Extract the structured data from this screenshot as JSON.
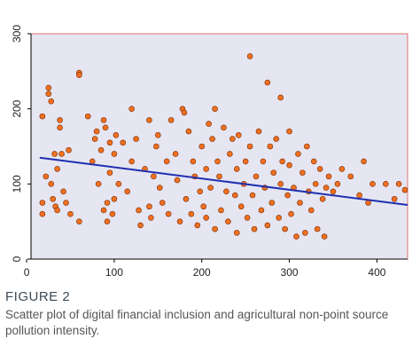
{
  "chart_data": {
    "type": "scatter",
    "caption": {
      "label": "FIGURE 2",
      "text": "Scatter plot of digital financial inclusion and agricultural non-point source pollution intensity."
    },
    "xlim": [
      5,
      435
    ],
    "ylim": [
      0,
      300
    ],
    "xticks": [
      0,
      100,
      200,
      300,
      400
    ],
    "yticks": [
      0,
      100,
      200,
      300
    ],
    "point_color": "#f07020",
    "background": "#e6e6f2",
    "trend_line": {
      "x": [
        15,
        435
      ],
      "y": [
        135,
        72
      ],
      "color": "#1f2fb0"
    },
    "x": [
      18,
      18,
      18,
      22,
      25,
      25,
      28,
      28,
      30,
      32,
      33,
      35,
      35,
      38,
      38,
      40,
      42,
      45,
      48,
      50,
      60,
      60,
      60,
      70,
      75,
      78,
      80,
      82,
      85,
      88,
      88,
      90,
      92,
      92,
      95,
      95,
      98,
      100,
      100,
      102,
      105,
      110,
      115,
      120,
      120,
      125,
      128,
      130,
      135,
      140,
      140,
      142,
      145,
      148,
      150,
      152,
      155,
      160,
      162,
      165,
      170,
      172,
      175,
      178,
      180,
      182,
      185,
      188,
      190,
      192,
      195,
      198,
      200,
      202,
      205,
      205,
      208,
      210,
      212,
      215,
      215,
      218,
      220,
      222,
      225,
      228,
      230,
      232,
      235,
      238,
      240,
      240,
      242,
      245,
      248,
      250,
      252,
      255,
      255,
      258,
      260,
      262,
      265,
      268,
      270,
      272,
      275,
      275,
      278,
      280,
      282,
      285,
      288,
      290,
      290,
      292,
      295,
      298,
      300,
      300,
      302,
      305,
      308,
      310,
      312,
      315,
      318,
      320,
      322,
      325,
      328,
      330,
      332,
      335,
      338,
      340,
      342,
      345,
      350,
      355,
      360,
      370,
      380,
      385,
      390,
      395,
      410,
      420,
      425,
      432
    ],
    "y": [
      190,
      75,
      60,
      110,
      220,
      228,
      100,
      210,
      80,
      140,
      70,
      120,
      65,
      185,
      175,
      140,
      90,
      75,
      145,
      60,
      248,
      245,
      50,
      190,
      130,
      160,
      170,
      100,
      145,
      185,
      65,
      175,
      50,
      75,
      155,
      115,
      60,
      80,
      140,
      165,
      100,
      155,
      90,
      200,
      130,
      160,
      65,
      45,
      120,
      185,
      70,
      55,
      110,
      150,
      165,
      95,
      75,
      130,
      60,
      185,
      140,
      105,
      50,
      200,
      195,
      80,
      170,
      60,
      130,
      110,
      45,
      90,
      150,
      70,
      120,
      55,
      180,
      95,
      160,
      200,
      40,
      130,
      110,
      65,
      175,
      90,
      50,
      140,
      160,
      85,
      120,
      35,
      165,
      70,
      100,
      130,
      55,
      270,
      150,
      85,
      40,
      110,
      170,
      65,
      130,
      95,
      235,
      45,
      150,
      75,
      115,
      160,
      55,
      215,
      100,
      130,
      40,
      85,
      170,
      125,
      60,
      95,
      30,
      140,
      75,
      115,
      35,
      150,
      90,
      65,
      130,
      100,
      40,
      120,
      80,
      30,
      95,
      110,
      90,
      100,
      120,
      110,
      85,
      130,
      75,
      100,
      100,
      80,
      100,
      92
    ]
  }
}
